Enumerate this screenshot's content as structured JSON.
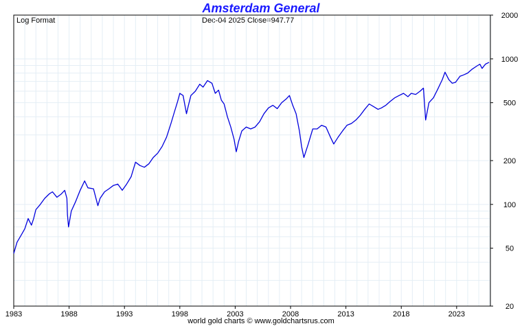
{
  "chart_data": {
    "type": "line",
    "title": "Amsterdam General",
    "scale_note": "Log Format",
    "header_info": "Dec-04  2025   Close=947.77",
    "footer": "world gold charts © www.goldchartsrus.com",
    "y_scale": "log",
    "ylim": [
      20,
      2000
    ],
    "y_ticks": [
      2000,
      1000,
      500,
      200,
      100,
      50,
      20
    ],
    "y_tick_labels": [
      "2000",
      "1000",
      "500",
      "200",
      "100",
      "50",
      "20"
    ],
    "xlim": [
      1983,
      2026.05
    ],
    "x_ticks": [
      1983,
      1988,
      1993,
      1998,
      2003,
      2008,
      2013,
      2018,
      2023
    ],
    "x_tick_labels": [
      "1983",
      "1988",
      "1993",
      "1998",
      "2003",
      "2008",
      "2013",
      "2018",
      "2023"
    ],
    "grid": true,
    "series": [
      {
        "color": "#0000dd",
        "x": [
          1983.0,
          1983.3,
          1983.7,
          1984.0,
          1984.3,
          1984.6,
          1984.8,
          1985.0,
          1985.4,
          1985.8,
          1986.2,
          1986.5,
          1986.9,
          1987.3,
          1987.6,
          1987.8,
          1987.85,
          1987.95,
          1988.2,
          1988.6,
          1989.0,
          1989.4,
          1989.7,
          1990.2,
          1990.6,
          1990.8,
          1991.2,
          1991.6,
          1992.0,
          1992.4,
          1992.8,
          1993.2,
          1993.6,
          1994.0,
          1994.4,
          1994.8,
          1995.2,
          1995.6,
          1996.0,
          1996.4,
          1996.8,
          1997.2,
          1997.5,
          1997.8,
          1998.0,
          1998.3,
          1998.6,
          1998.75,
          1999.0,
          1999.4,
          1999.8,
          2000.1,
          2000.5,
          2000.9,
          2001.2,
          2001.5,
          2001.75,
          2002.0,
          2002.3,
          2002.6,
          2002.9,
          2003.1,
          2003.3,
          2003.6,
          2004.0,
          2004.4,
          2004.8,
          2005.2,
          2005.6,
          2006.0,
          2006.4,
          2006.8,
          2007.2,
          2007.6,
          2007.9,
          2008.2,
          2008.5,
          2008.8,
          2009.0,
          2009.2,
          2009.6,
          2010.0,
          2010.4,
          2010.8,
          2011.2,
          2011.6,
          2011.9,
          2012.3,
          2012.7,
          2013.1,
          2013.5,
          2013.9,
          2014.3,
          2014.7,
          2015.1,
          2015.5,
          2015.9,
          2016.2,
          2016.6,
          2017.0,
          2017.4,
          2017.8,
          2018.2,
          2018.6,
          2018.9,
          2019.3,
          2019.7,
          2020.0,
          2020.2,
          2020.5,
          2020.9,
          2021.3,
          2021.7,
          2021.95,
          2022.3,
          2022.6,
          2022.9,
          2023.3,
          2023.7,
          2024.0,
          2024.4,
          2024.8,
          2025.1,
          2025.3,
          2025.6,
          2025.93
        ],
        "y": [
          46,
          55,
          62,
          68,
          80,
          72,
          80,
          92,
          100,
          110,
          118,
          122,
          112,
          118,
          125,
          110,
          85,
          70,
          90,
          105,
          125,
          145,
          130,
          128,
          98,
          110,
          122,
          128,
          135,
          138,
          125,
          138,
          155,
          195,
          185,
          180,
          190,
          210,
          225,
          250,
          290,
          360,
          430,
          510,
          580,
          560,
          420,
          470,
          560,
          600,
          670,
          640,
          710,
          680,
          580,
          610,
          520,
          490,
          400,
          340,
          280,
          230,
          270,
          320,
          340,
          330,
          340,
          370,
          420,
          460,
          480,
          455,
          500,
          530,
          560,
          480,
          420,
          320,
          250,
          210,
          260,
          330,
          330,
          350,
          340,
          290,
          260,
          290,
          320,
          350,
          360,
          380,
          410,
          450,
          490,
          470,
          450,
          460,
          480,
          510,
          540,
          560,
          580,
          550,
          580,
          570,
          600,
          630,
          380,
          500,
          540,
          620,
          720,
          810,
          720,
          680,
          690,
          760,
          780,
          800,
          850,
          890,
          920,
          860,
          920,
          947.77
        ]
      }
    ]
  }
}
